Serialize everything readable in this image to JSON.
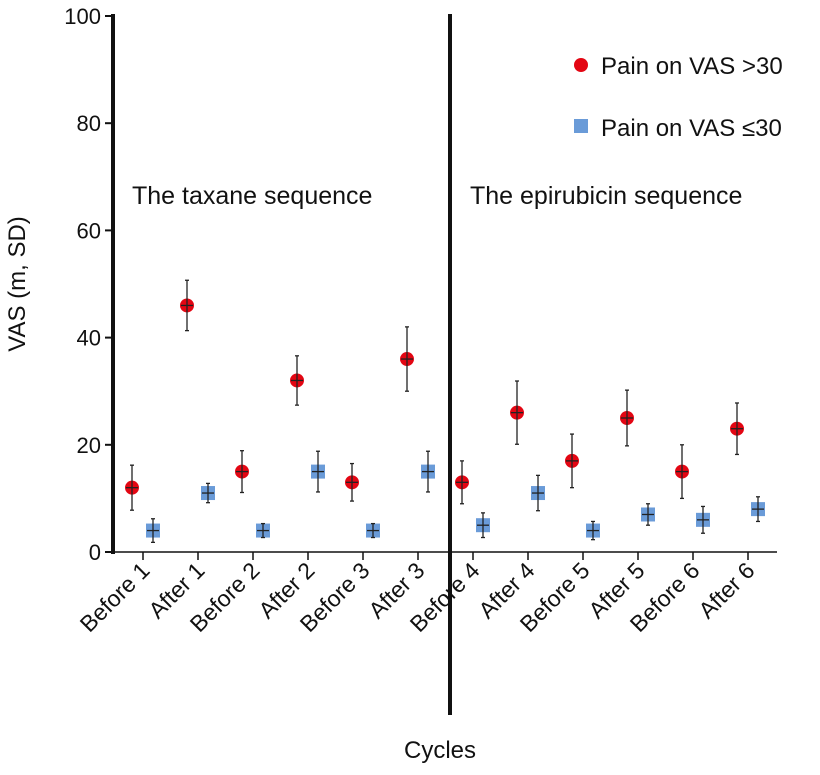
{
  "chart_data": {
    "type": "scatter",
    "title": "",
    "xlabel": "Cycles",
    "ylabel": "VAS (m, SD)",
    "ylim": [
      0,
      100
    ],
    "yticks": [
      0,
      20,
      40,
      60,
      80,
      100
    ],
    "categories": [
      "Before 1",
      "After 1",
      "Before 2",
      "After 2",
      "Before 3",
      "After 3",
      "Before 4",
      "After 4",
      "Before 5",
      "After 5",
      "Before 6",
      "After 6"
    ],
    "legend_position": "top-right",
    "grid": false,
    "annotations": [
      "The taxane sequence",
      "The epirubicin sequence"
    ],
    "series": [
      {
        "name": "Pain on VAS >30",
        "marker": "circle",
        "color": "#e30613",
        "values": [
          12,
          46,
          15,
          32,
          13,
          36,
          13,
          26,
          17,
          25,
          15,
          23
        ],
        "sd": [
          4.2,
          4.7,
          3.9,
          4.6,
          3.5,
          6.0,
          4.0,
          5.9,
          5.0,
          5.2,
          5.0,
          4.8
        ]
      },
      {
        "name": "Pain on VAS ≤30",
        "marker": "square",
        "color": "#6a9bd8",
        "values": [
          4,
          11,
          4,
          15,
          4,
          15,
          5,
          11,
          4,
          7,
          6,
          8
        ],
        "sd": [
          2.2,
          1.8,
          1.3,
          3.8,
          1.3,
          3.8,
          2.3,
          3.3,
          1.7,
          2.0,
          2.5,
          2.3
        ]
      }
    ]
  }
}
